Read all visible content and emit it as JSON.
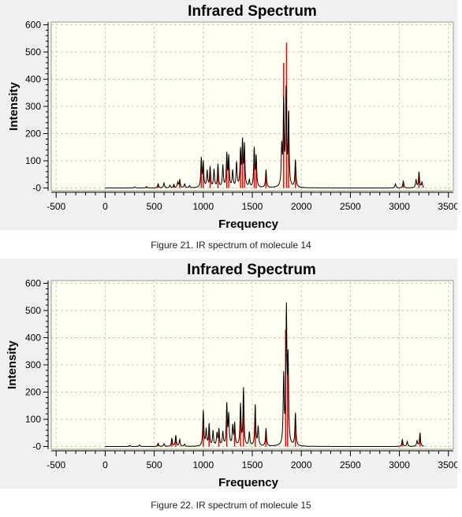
{
  "chart_data": [
    {
      "type": "line",
      "title": "Infrared Spectrum",
      "xlabel": "Frequency",
      "ylabel": "Intensity",
      "xlim": [
        -550,
        3550
      ],
      "ylim": [
        -10,
        610
      ],
      "xticks": [
        -500,
        0,
        500,
        1000,
        1500,
        2000,
        2500,
        3000,
        3500
      ],
      "yticks": [
        0,
        100,
        200,
        300,
        400,
        500,
        600
      ],
      "grid": true,
      "series": [
        {
          "color": "#000000",
          "x_range": [
            0,
            3250
          ],
          "peaks": [
            [
              300,
              4
            ],
            [
              420,
              5
            ],
            [
              540,
              15
            ],
            [
              600,
              18
            ],
            [
              660,
              10
            ],
            [
              700,
              12
            ],
            [
              740,
              20
            ],
            [
              760,
              30
            ],
            [
              810,
              14
            ],
            [
              860,
              8
            ],
            [
              980,
              105
            ],
            [
              1000,
              90
            ],
            [
              1040,
              60
            ],
            [
              1070,
              75
            ],
            [
              1110,
              65
            ],
            [
              1150,
              85
            ],
            [
              1200,
              80
            ],
            [
              1240,
              120
            ],
            [
              1260,
              110
            ],
            [
              1300,
              60
            ],
            [
              1340,
              90
            ],
            [
              1380,
              130
            ],
            [
              1400,
              160
            ],
            [
              1420,
              150
            ],
            [
              1470,
              25
            ],
            [
              1520,
              140
            ],
            [
              1540,
              110
            ],
            [
              1640,
              65
            ],
            [
              1800,
              140
            ],
            [
              1820,
              300
            ],
            [
              1845,
              350
            ],
            [
              1870,
              260
            ],
            [
              1940,
              100
            ],
            [
              2960,
              15
            ],
            [
              3040,
              25
            ],
            [
              3170,
              30
            ],
            [
              3200,
              58
            ],
            [
              3230,
              20
            ]
          ]
        },
        {
          "color": "#ff0000",
          "peaks": [
            [
              420,
              4
            ],
            [
              540,
              10
            ],
            [
              700,
              12
            ],
            [
              760,
              20
            ],
            [
              980,
              80
            ],
            [
              1000,
              70
            ],
            [
              1070,
              55
            ],
            [
              1150,
              70
            ],
            [
              1240,
              100
            ],
            [
              1260,
              95
            ],
            [
              1380,
              110
            ],
            [
              1400,
              140
            ],
            [
              1420,
              120
            ],
            [
              1520,
              130
            ],
            [
              1540,
              95
            ],
            [
              1640,
              50
            ],
            [
              1820,
              460
            ],
            [
              1850,
              535
            ],
            [
              1870,
              280
            ],
            [
              1940,
              100
            ],
            [
              3040,
              20
            ],
            [
              3200,
              45
            ]
          ]
        }
      ]
    },
    {
      "type": "line",
      "title": "Infrared Spectrum",
      "xlabel": "Frequency",
      "ylabel": "Intensity",
      "xlim": [
        -550,
        3550
      ],
      "ylim": [
        -10,
        610
      ],
      "xticks": [
        -500,
        0,
        500,
        1000,
        1500,
        2000,
        2500,
        3000,
        3500
      ],
      "yticks": [
        0,
        100,
        200,
        300,
        400,
        500,
        600
      ],
      "grid": true,
      "series": [
        {
          "color": "#000000",
          "x_range": [
            0,
            3250
          ],
          "peaks": [
            [
              250,
              4
            ],
            [
              350,
              6
            ],
            [
              540,
              12
            ],
            [
              600,
              10
            ],
            [
              680,
              30
            ],
            [
              720,
              40
            ],
            [
              760,
              25
            ],
            [
              810,
              8
            ],
            [
              1000,
              130
            ],
            [
              1030,
              60
            ],
            [
              1060,
              80
            ],
            [
              1100,
              55
            ],
            [
              1140,
              45
            ],
            [
              1160,
              60
            ],
            [
              1200,
              50
            ],
            [
              1240,
              150
            ],
            [
              1260,
              110
            ],
            [
              1300,
              70
            ],
            [
              1320,
              80
            ],
            [
              1380,
              150
            ],
            [
              1410,
              210
            ],
            [
              1470,
              50
            ],
            [
              1530,
              150
            ],
            [
              1560,
              70
            ],
            [
              1640,
              65
            ],
            [
              1820,
              250
            ],
            [
              1848,
              485
            ],
            [
              1865,
              300
            ],
            [
              1940,
              120
            ],
            [
              3030,
              25
            ],
            [
              3080,
              18
            ],
            [
              3180,
              20
            ],
            [
              3210,
              50
            ]
          ]
        },
        {
          "color": "#ff0000",
          "peaks": [
            [
              250,
              4
            ],
            [
              540,
              10
            ],
            [
              680,
              25
            ],
            [
              720,
              30
            ],
            [
              1000,
              100
            ],
            [
              1060,
              70
            ],
            [
              1160,
              50
            ],
            [
              1240,
              125
            ],
            [
              1320,
              70
            ],
            [
              1380,
              120
            ],
            [
              1410,
              190
            ],
            [
              1530,
              120
            ],
            [
              1640,
              50
            ],
            [
              1840,
              430
            ],
            [
              1860,
              340
            ],
            [
              1940,
              100
            ],
            [
              3030,
              20
            ],
            [
              3210,
              40
            ]
          ]
        }
      ]
    }
  ],
  "captions": [
    "Figure 21. IR spectrum of molecule 14",
    "Figure 22. IR spectrum of molecule 15"
  ]
}
